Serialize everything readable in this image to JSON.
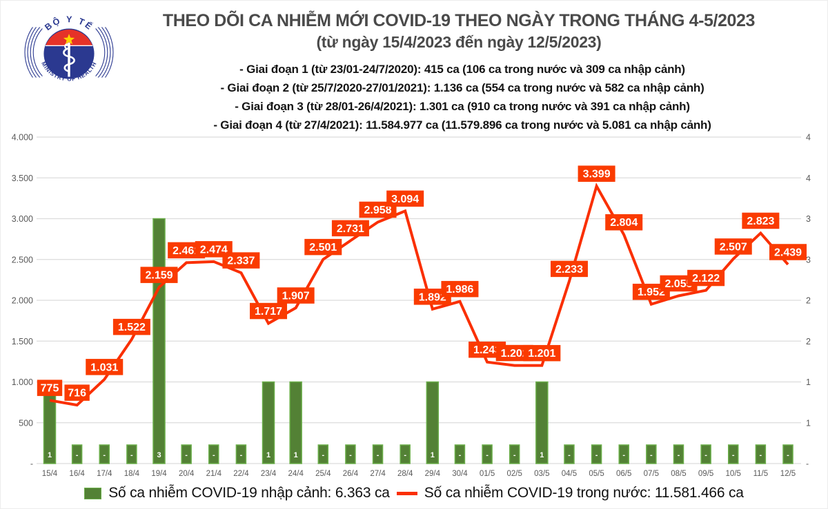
{
  "header": {
    "logo": {
      "top_text": "BỘ Y TẾ",
      "bottom_text": "MINISTRY OF HEALTH"
    },
    "title": "THEO DÕI CA NHIỄM MỚI COVID-19 THEO NGÀY TRONG THÁNG 4-5/2023",
    "subtitle": "(từ ngày 15/4/2023 đến ngày 12/5/2023)",
    "phases": [
      "- Giai đoạn 1 (từ 23/01-24/7/2020): 415 ca (106 ca trong nước và 309 ca nhập cảnh)",
      "- Giai đoạn 2 (từ 25/7/2020-27/01/2021): 1.136 ca (554 ca trong nước và 582 ca nhập cảnh)",
      "- Giai đoạn 3 (từ 28/01-26/4/2021): 1.301 ca (910 ca trong nước và 391 ca nhập cảnh)",
      "- Giai đoạn 4 (từ 27/4/2021): 11.584.977 ca (11.579.896 ca trong nước và 5.081 ca nhập cảnh)"
    ]
  },
  "chart_data": {
    "type": "combo bar+line",
    "categories": [
      "15/4",
      "16/4",
      "17/4",
      "18/4",
      "19/4",
      "20/4",
      "21/4",
      "22/4",
      "23/4",
      "24/4",
      "25/4",
      "26/4",
      "27/4",
      "28/4",
      "29/4",
      "30/4",
      "01/5",
      "02/5",
      "03/5",
      "04/5",
      "05/5",
      "06/5",
      "07/5",
      "08/5",
      "09/5",
      "10/5",
      "11/5",
      "12/5"
    ],
    "series": [
      {
        "name": "Số ca nhiễm COVID-19 nhập cảnh",
        "type": "bar",
        "axis": "right",
        "values": [
          1,
          0,
          0,
          0,
          3,
          0,
          0,
          0,
          1,
          1,
          0,
          0,
          0,
          0,
          1,
          0,
          0,
          0,
          1,
          0,
          0,
          0,
          0,
          0,
          0,
          0,
          0,
          0
        ],
        "labels": [
          "1",
          "-",
          "-",
          "-",
          "3",
          "-",
          "-",
          "-",
          "1",
          "1",
          "-",
          "-",
          "-",
          "-",
          "1",
          "-",
          "-",
          "-",
          "1",
          "-",
          "-",
          "-",
          "-",
          "-",
          "-",
          "-",
          "-",
          "-"
        ]
      },
      {
        "name": "Số ca nhiễm COVID-19 trong nước",
        "type": "line",
        "axis": "left",
        "values": [
          775,
          716,
          1031,
          1522,
          2159,
          2461,
          2474,
          2337,
          1717,
          1907,
          2501,
          2731,
          2958,
          3094,
          1892,
          1986,
          1243,
          1202,
          1201,
          2233,
          3399,
          2804,
          1952,
          2055,
          2122,
          2507,
          2823,
          2439
        ],
        "labels": [
          "775",
          "716",
          "1.031",
          "1.522",
          "2.159",
          "2.461",
          "2.474",
          "2.337",
          "1.717",
          "1.907",
          "2.501",
          "2.731",
          "2.958",
          "3.094",
          "1.892",
          "1.986",
          "1.243",
          "1.202",
          "1.201",
          "2.233",
          "3.399",
          "2.804",
          "1.952",
          "2.055",
          "2.122",
          "2.507",
          "2.823",
          "2.439"
        ]
      }
    ],
    "left_axis": {
      "min": 0,
      "max": 4000,
      "step": 500,
      "ticks": [
        "4.000",
        "3.500",
        "3.000",
        "2.500",
        "2.000",
        "1.500",
        "1.000",
        "500",
        "-"
      ]
    },
    "right_axis": {
      "min": 0,
      "max": 4,
      "step": 0.5,
      "ticks": [
        "4",
        "4",
        "3",
        "3",
        "2",
        "2",
        "1",
        "1",
        "-"
      ]
    },
    "grid": true,
    "legend_position": "bottom"
  },
  "legend": {
    "bar_label": "Số ca nhiễm COVID-19 nhập cảnh: 6.363 ca",
    "line_label": "Số ca nhiễm COVID-19 trong nước: 11.581.466 ca"
  },
  "colors": {
    "bar_fill": "#538135",
    "bar_stroke": "#6aae49",
    "line": "#fa2f00",
    "point_label_bg": "#fa3b00",
    "point_label_text": "#ffffff",
    "bar_value_text": "#ffffff",
    "axis_text": "#595959",
    "grid": "#dcdcdc",
    "logo_blue": "#2b3990",
    "logo_red": "#e63228",
    "logo_star": "#ffd400"
  }
}
